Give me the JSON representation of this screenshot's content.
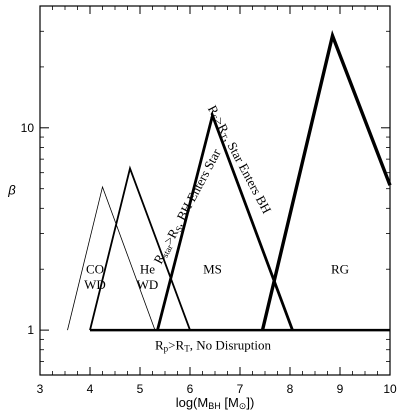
{
  "chart_data": {
    "type": "line",
    "xlabel": "log(M",
    "xlabel_sub": "BH",
    "xlabel_unit": " [M",
    "xlabel_unit_sub": "⊙",
    "xlabel_end": "])",
    "ylabel": "β",
    "xlim": [
      3,
      10
    ],
    "ylim": [
      0.6,
      40
    ],
    "yscale": "log",
    "x_ticks": [
      3,
      4,
      5,
      6,
      7,
      8,
      9,
      10
    ],
    "x_tick_labels": [
      "3",
      "4",
      "5",
      "6",
      "7",
      "8",
      "9",
      "10"
    ],
    "y_ticks": [
      1,
      10
    ],
    "y_tick_labels": [
      "1",
      "10"
    ],
    "series": [
      {
        "name": "CO WD",
        "x": [
          3.55,
          4.25,
          5.3
        ],
        "y": [
          1,
          5.1,
          1
        ]
      },
      {
        "name": "He WD",
        "x": [
          4.0,
          4.8,
          6.0
        ],
        "y": [
          1,
          6.3,
          1
        ]
      },
      {
        "name": "MS",
        "x": [
          5.35,
          6.45,
          8.05
        ],
        "y": [
          1,
          11.5,
          1
        ]
      },
      {
        "name": "RG",
        "x": [
          7.45,
          8.85,
          10.0
        ],
        "y": [
          1,
          28.5,
          5.2
        ]
      },
      {
        "name": "no-disruption-line",
        "x": [
          4.0,
          10.0
        ],
        "y": [
          1,
          1
        ]
      }
    ],
    "line_widths": [
      0.8,
      1.8,
      2.8,
      3.4,
      2.4
    ],
    "region_labels": [
      {
        "text": "CO",
        "x": 4.1,
        "y": 1.9
      },
      {
        "text": "WD",
        "x": 4.1,
        "y": 1.6
      },
      {
        "text": "He",
        "x": 5.15,
        "y": 1.9
      },
      {
        "text": "WD",
        "x": 5.15,
        "y": 1.6
      },
      {
        "text": "MS",
        "x": 6.45,
        "y": 1.9
      },
      {
        "text": "RG",
        "x": 9.0,
        "y": 1.9
      }
    ],
    "annotations": [
      {
        "parts": [
          [
            "R",
            ""
          ],
          [
            "p",
            "sub"
          ],
          [
            ">R",
            ""
          ],
          [
            "T",
            "sub"
          ],
          [
            ", No Disruption",
            ""
          ]
        ],
        "x": 5.3,
        "y": 0.8,
        "angle": 0
      },
      {
        "parts": [
          [
            "R",
            ""
          ],
          [
            "star",
            "sub"
          ],
          [
            ">R",
            ""
          ],
          [
            "S",
            "sub"
          ],
          [
            ", BH Enters Star",
            ""
          ]
        ],
        "x": 5.42,
        "y": 2.1,
        "angle": -62
      },
      {
        "parts": [
          [
            "R",
            ""
          ],
          [
            "S",
            "sub"
          ],
          [
            ">R",
            ""
          ],
          [
            "T",
            "sub"
          ],
          [
            ", Star Enters BH",
            ""
          ]
        ],
        "x": 6.35,
        "y": 12.5,
        "angle": 62
      }
    ],
    "grid": false,
    "legend": "none"
  }
}
